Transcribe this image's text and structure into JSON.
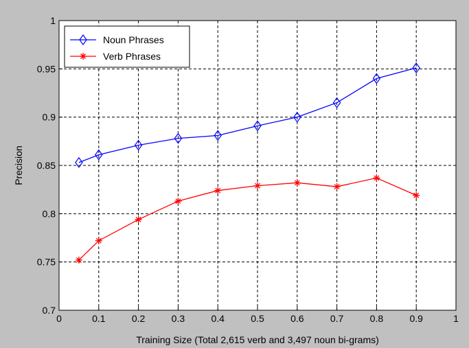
{
  "chart_data": {
    "type": "line",
    "title": "",
    "xlabel": "Training Size (Total 2,615 verb and 3,497 noun bi-grams)",
    "ylabel": "Precision",
    "xlim": [
      0,
      1
    ],
    "ylim": [
      0.7,
      1
    ],
    "x_ticks": [
      "0",
      "0.1",
      "0.2",
      "0.3",
      "0.4",
      "0.5",
      "0.6",
      "0.7",
      "0.8",
      "0.9",
      "1"
    ],
    "y_ticks": [
      "0.7",
      "0.75",
      "0.8",
      "0.85",
      "0.9",
      "0.95",
      "1"
    ],
    "grid": true,
    "legend_position": "top-left",
    "series": [
      {
        "name": "Noun Phrases",
        "color": "#0000ff",
        "marker": "diamond",
        "x": [
          0.05,
          0.1,
          0.2,
          0.3,
          0.4,
          0.5,
          0.6,
          0.7,
          0.8,
          0.9
        ],
        "values": [
          0.853,
          0.861,
          0.871,
          0.878,
          0.881,
          0.891,
          0.9,
          0.915,
          0.94,
          0.951
        ]
      },
      {
        "name": "Verb Phrases",
        "color": "#ff0000",
        "marker": "asterisk",
        "x": [
          0.05,
          0.1,
          0.2,
          0.3,
          0.4,
          0.5,
          0.6,
          0.7,
          0.8,
          0.9
        ],
        "values": [
          0.752,
          0.772,
          0.794,
          0.813,
          0.824,
          0.829,
          0.832,
          0.828,
          0.837,
          0.819
        ]
      }
    ]
  }
}
